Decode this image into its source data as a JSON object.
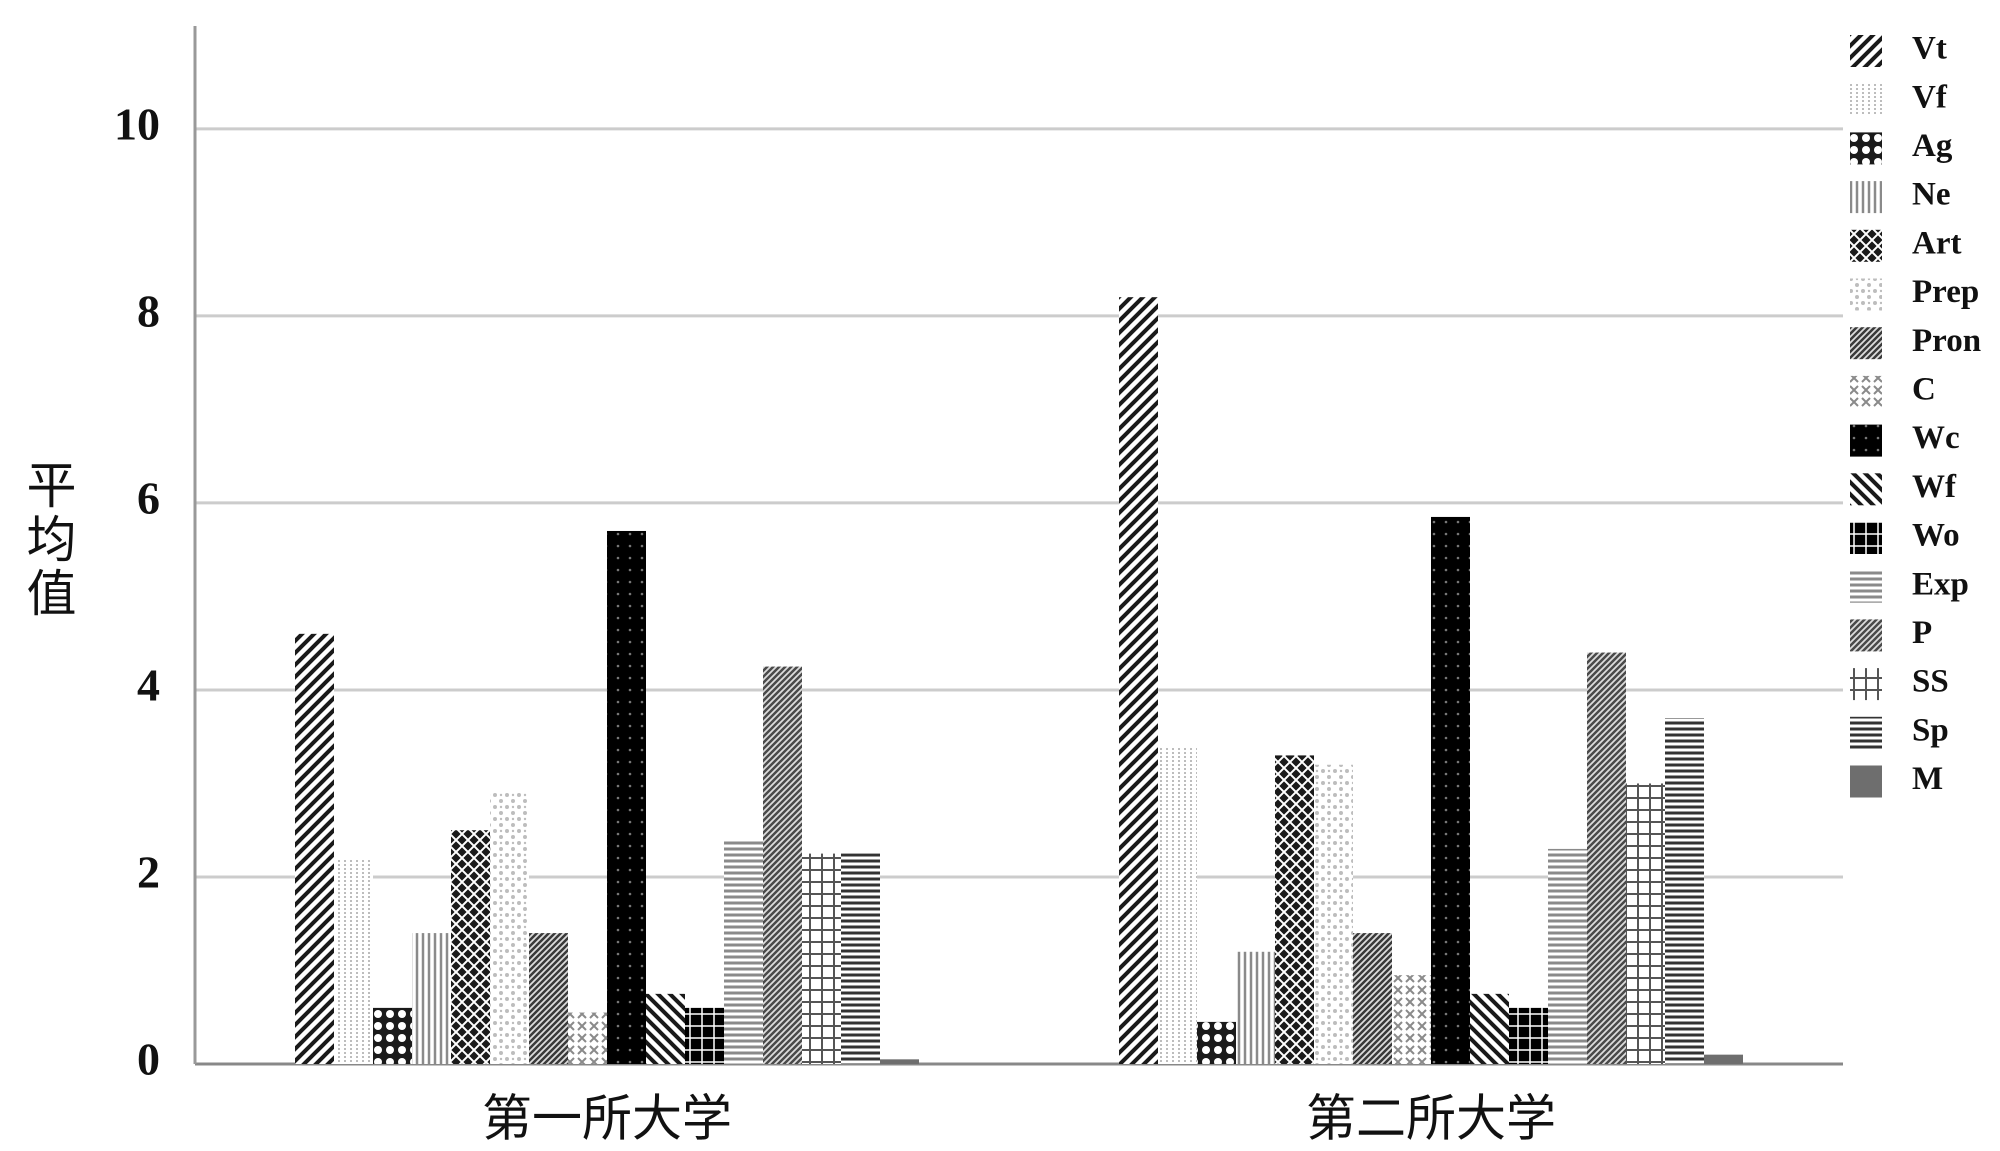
{
  "chart_data": {
    "type": "bar",
    "y_label": "平均值",
    "categories": [
      "第一所大学",
      "第二所大学"
    ],
    "ylim": [
      0,
      11.1
    ],
    "yticks": [
      0,
      2,
      4,
      6,
      8,
      10
    ],
    "grid": true,
    "legend": "right",
    "series": [
      {
        "name": "Vt",
        "color": "#1a1a1a",
        "pattern": "diagonal",
        "values": [
          4.6,
          8.2
        ]
      },
      {
        "name": "Vf",
        "color": "#bdbdbd",
        "pattern": "dotted-lines",
        "values": [
          2.2,
          3.4
        ]
      },
      {
        "name": "Ag",
        "color": "#1a1a1a",
        "pattern": "circles",
        "values": [
          0.6,
          0.45
        ]
      },
      {
        "name": "Ne",
        "color": "#8a8a8a",
        "pattern": "vertical",
        "values": [
          1.4,
          1.2
        ]
      },
      {
        "name": "Art",
        "color": "#1a1a1a",
        "pattern": "crosshatch",
        "values": [
          2.5,
          3.3
        ]
      },
      {
        "name": "Prep",
        "color": "#bdbdbd",
        "pattern": "stipple",
        "values": [
          2.9,
          3.2
        ]
      },
      {
        "name": "Pron",
        "color": "#3a3a3a",
        "pattern": "dense-diagonal",
        "values": [
          1.4,
          1.4
        ]
      },
      {
        "name": "C",
        "color": "#8a8a8a",
        "pattern": "crosses",
        "values": [
          0.55,
          0.95
        ]
      },
      {
        "name": "Wc",
        "color": "#000000",
        "pattern": "dark-dots",
        "values": [
          5.7,
          5.85
        ]
      },
      {
        "name": "Wf",
        "color": "#1a1a1a",
        "pattern": "back-diagonal",
        "values": [
          0.75,
          0.75
        ]
      },
      {
        "name": "Wo",
        "color": "#000000",
        "pattern": "checker",
        "values": [
          0.6,
          0.6
        ]
      },
      {
        "name": "Exp",
        "color": "#8a8a8a",
        "pattern": "horizontal",
        "values": [
          2.4,
          2.3
        ]
      },
      {
        "name": "P",
        "color": "#4a4a4a",
        "pattern": "dense-diagonal",
        "values": [
          4.25,
          4.4
        ]
      },
      {
        "name": "SS",
        "color": "#555555",
        "pattern": "grid",
        "values": [
          2.25,
          3.0
        ]
      },
      {
        "name": "Sp",
        "color": "#333333",
        "pattern": "horizontal",
        "values": [
          2.25,
          3.7
        ]
      },
      {
        "name": "M",
        "color": "#6e6e6e",
        "pattern": "solid",
        "values": [
          0.05,
          0.1
        ]
      }
    ]
  }
}
